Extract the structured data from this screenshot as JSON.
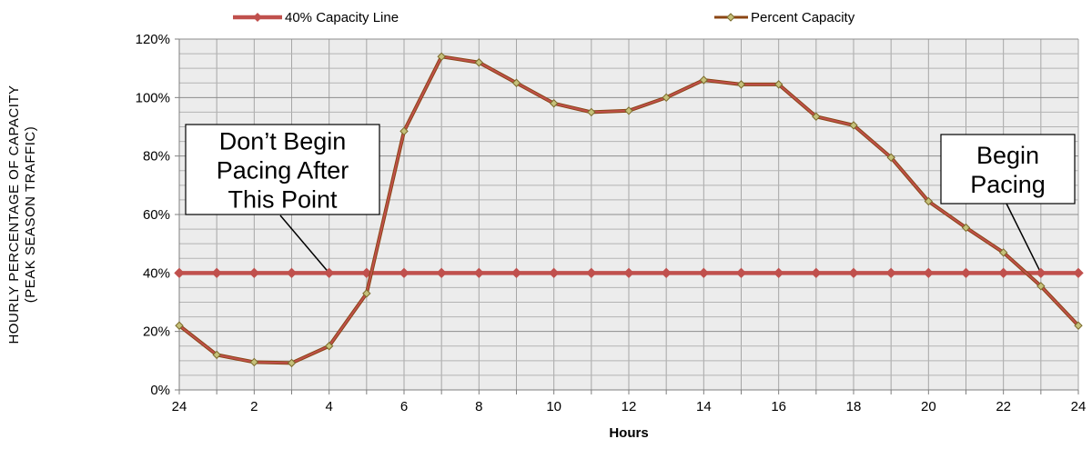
{
  "chart_data": {
    "type": "line",
    "x_tick_labels": [
      "24",
      "2",
      "4",
      "6",
      "8",
      "10",
      "12",
      "14",
      "16",
      "18",
      "20",
      "22",
      "24"
    ],
    "x_positions": [
      0,
      1,
      2,
      3,
      4,
      5,
      6,
      7,
      8,
      9,
      10,
      11,
      12,
      13,
      14,
      15,
      16,
      17,
      18,
      19,
      20,
      21,
      22,
      23,
      24
    ],
    "xlim": [
      0,
      24
    ],
    "ylim": [
      0,
      1.2
    ],
    "y_tick_labels": [
      "0%",
      "20%",
      "40%",
      "60%",
      "80%",
      "100%",
      "120%"
    ],
    "xlabel": "Hours",
    "ylabel_line1": "HOURLY PERCENTAGE OF CAPACITY",
    "ylabel_line2": "(PEAK SEASON TRAFFIC)",
    "grid": true,
    "legend_position": "top",
    "series": [
      {
        "name": "40% Capacity Line",
        "color": "#c0504d",
        "values": [
          0.4,
          0.4,
          0.4,
          0.4,
          0.4,
          0.4,
          0.4,
          0.4,
          0.4,
          0.4,
          0.4,
          0.4,
          0.4,
          0.4,
          0.4,
          0.4,
          0.4,
          0.4,
          0.4,
          0.4,
          0.4,
          0.4,
          0.4,
          0.4,
          0.4
        ]
      },
      {
        "name": "Percent Capacity",
        "color": "#c0504d",
        "marker_fill": "#c5c07a",
        "values": [
          0.22,
          0.12,
          0.095,
          0.092,
          0.15,
          0.33,
          0.885,
          1.14,
          1.12,
          1.05,
          0.98,
          0.95,
          0.955,
          1.0,
          1.06,
          1.045,
          1.045,
          0.935,
          0.905,
          0.795,
          0.645,
          0.555,
          0.47,
          0.355,
          0.22
        ]
      }
    ],
    "annotations": [
      {
        "text_lines": [
          "Don’t Begin",
          "Pacing After",
          "This Point"
        ],
        "points_to_x": 4,
        "points_to_y": 0.4
      },
      {
        "text_lines": [
          "Begin",
          "Pacing"
        ],
        "points_to_x": 23,
        "points_to_y": 0.4
      }
    ]
  }
}
